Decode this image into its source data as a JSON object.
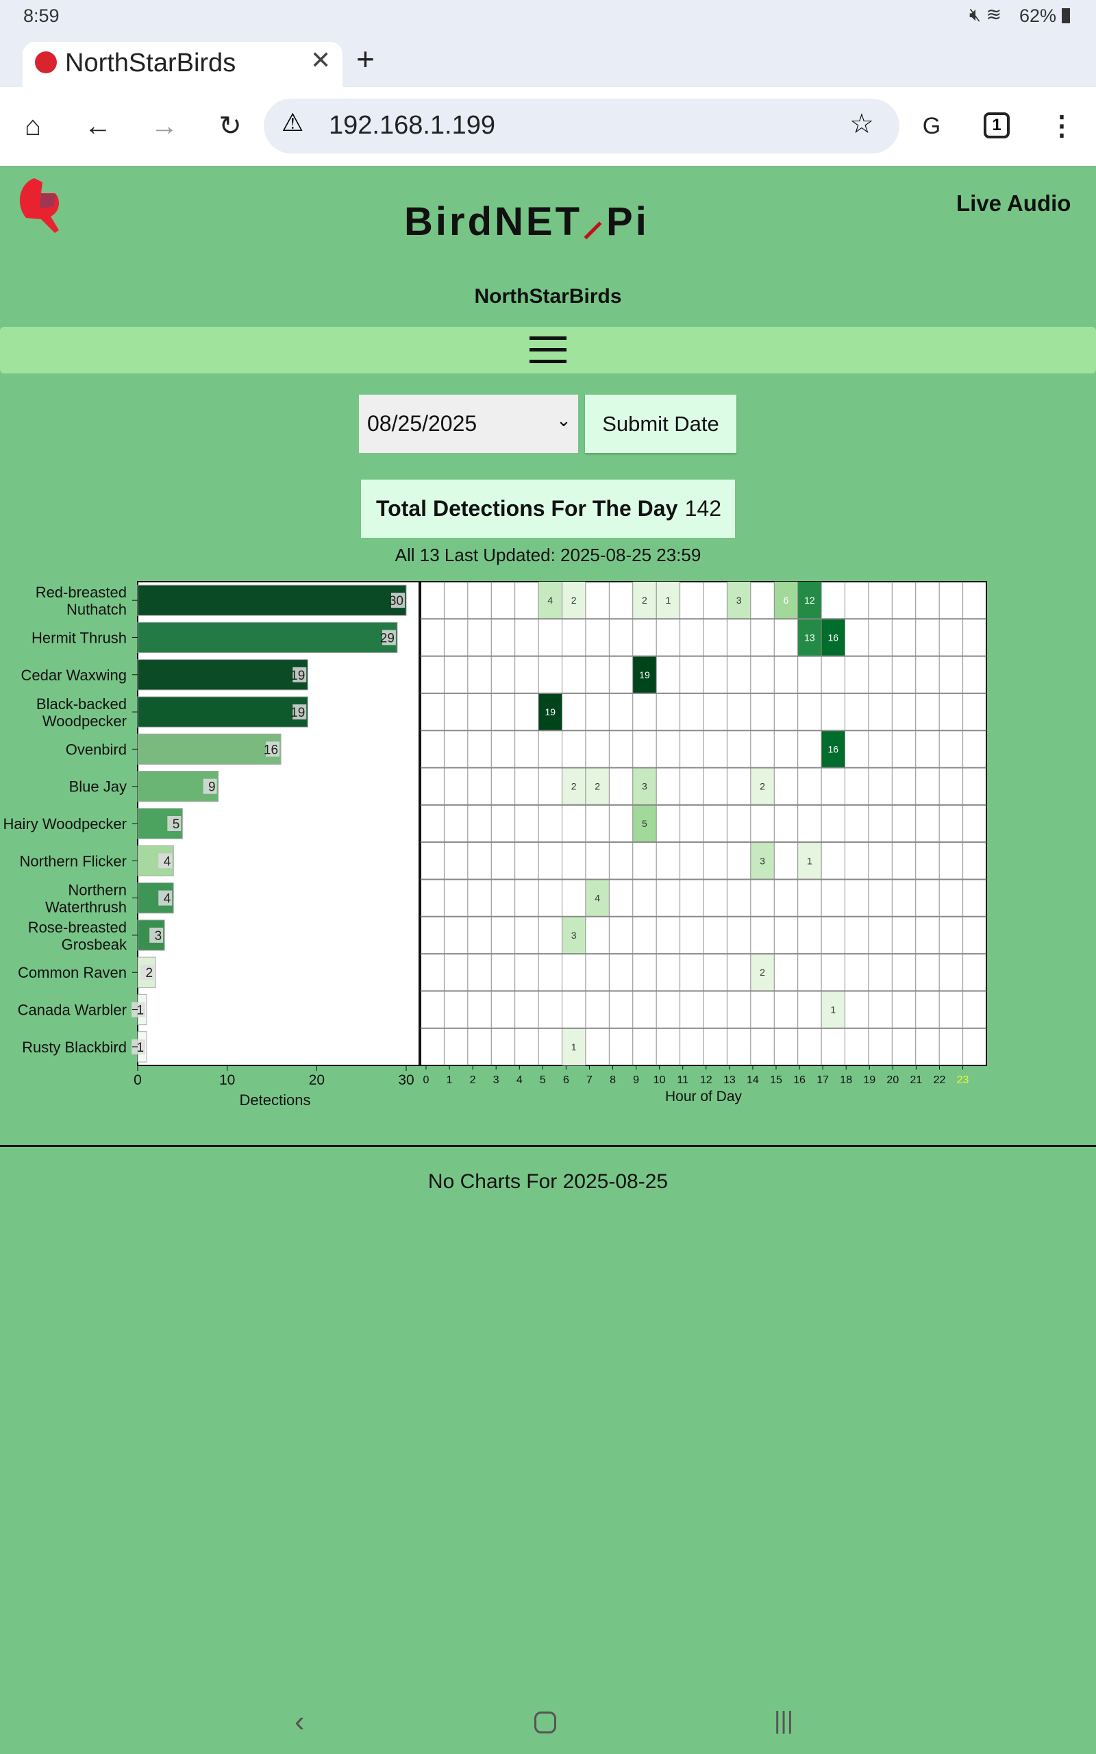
{
  "status_bar": {
    "time": "8:59",
    "battery": "62%"
  },
  "browser": {
    "tab_title": "NorthStarBirds",
    "url": "192.168.1.199",
    "tab_count": "1"
  },
  "header": {
    "title_left": "BirdNET",
    "title_right": "Pi",
    "live_audio": "Live Audio",
    "site_name": "NorthStarBirds"
  },
  "controls": {
    "date_value": "08/25/2025",
    "submit_label": "Submit Date"
  },
  "totals": {
    "label": "Total Detections For The Day",
    "value": "142",
    "updated": "All 13 Last Updated: 2025-08-25 23:59"
  },
  "no_charts": "No Charts For 2025-08-25",
  "chart_data": {
    "type": "bar+heatmap",
    "bar": {
      "xlabel": "Detections",
      "xlim": [
        0,
        30
      ],
      "xticks": [
        0,
        10,
        20,
        30
      ],
      "species": [
        {
          "name": [
            "Red-breasted",
            "Nuthatch"
          ],
          "value": 30,
          "color": "#0a4a25"
        },
        {
          "name": [
            "Hermit Thrush"
          ],
          "value": 29,
          "color": "#237a45"
        },
        {
          "name": [
            "Cedar Waxwing"
          ],
          "value": 19,
          "color": "#0b4b26"
        },
        {
          "name": [
            "Black-backed",
            "Woodpecker"
          ],
          "value": 19,
          "color": "#0f5a2c"
        },
        {
          "name": [
            "Ovenbird"
          ],
          "value": 16,
          "color": "#7aba7e"
        },
        {
          "name": [
            "Blue Jay"
          ],
          "value": 9,
          "color": "#6bb574"
        },
        {
          "name": [
            "Hairy Woodpecker"
          ],
          "value": 5,
          "color": "#4ca25f"
        },
        {
          "name": [
            "Northern Flicker"
          ],
          "value": 4,
          "color": "#a6d8a0"
        },
        {
          "name": [
            "Northern",
            "Waterthrush"
          ],
          "value": 4,
          "color": "#3f9556"
        },
        {
          "name": [
            "Rose-breasted",
            "Grosbeak"
          ],
          "value": 3,
          "color": "#3a8f50"
        },
        {
          "name": [
            "Common Raven"
          ],
          "value": 2,
          "color": "#dcf0d6"
        },
        {
          "name": [
            "Canada Warbler"
          ],
          "value": 1,
          "color": "#eef8ec"
        },
        {
          "name": [
            "Rusty Blackbird"
          ],
          "value": 1,
          "color": "#f4faf2"
        }
      ]
    },
    "heatmap": {
      "xlabel": "Hour of Day",
      "hours": [
        0,
        1,
        2,
        3,
        4,
        5,
        6,
        7,
        8,
        9,
        10,
        11,
        12,
        13,
        14,
        15,
        16,
        17,
        18,
        19,
        20,
        21,
        22,
        23
      ],
      "highlight_hour": 23,
      "highlight_color": "#e8f53a",
      "rows": [
        [
          [
            5,
            4
          ],
          [
            6,
            2
          ],
          [
            9,
            2
          ],
          [
            10,
            1
          ],
          [
            13,
            3
          ],
          [
            15,
            6
          ],
          [
            16,
            12
          ]
        ],
        [
          [
            16,
            13
          ],
          [
            17,
            16
          ]
        ],
        [
          [
            9,
            19
          ]
        ],
        [
          [
            5,
            19
          ]
        ],
        [
          [
            17,
            16
          ]
        ],
        [
          [
            6,
            2
          ],
          [
            7,
            2
          ],
          [
            9,
            3
          ],
          [
            14,
            2
          ]
        ],
        [
          [
            9,
            5
          ]
        ],
        [
          [
            14,
            3
          ],
          [
            16,
            1
          ]
        ],
        [
          [
            7,
            4
          ]
        ],
        [
          [
            6,
            3
          ]
        ],
        [
          [
            14,
            2
          ]
        ],
        [
          [
            17,
            1
          ]
        ],
        [
          [
            6,
            1
          ]
        ]
      ]
    }
  }
}
